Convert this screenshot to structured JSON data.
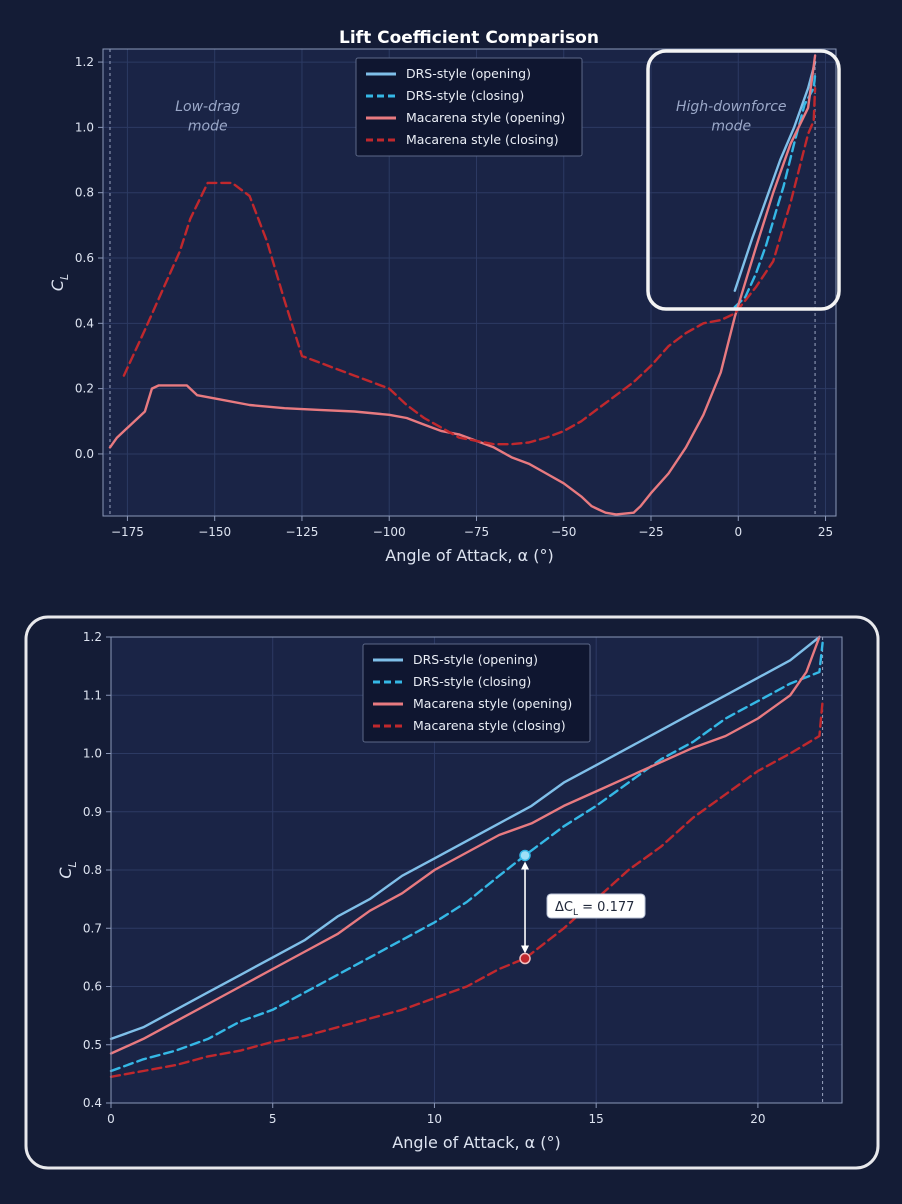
{
  "colors": {
    "background": "#141c36",
    "plot_bg": "#1a2446",
    "grid": "#2c3a63",
    "axis": "#8a97b8",
    "text": "#dde3f0",
    "drs": "#7fbfe9",
    "drs_close": "#35b8e6",
    "mac": "#e87a80",
    "mac_close": "#c0282d",
    "highlight": "#f4f4f4"
  },
  "chart_data": [
    {
      "type": "line",
      "title": "Lift Coefficient Comparison",
      "xlabel": "Angle of Attack, α (°)",
      "ylabel": "C",
      "ylabel_sub": "L",
      "xlim": [
        -182,
        28
      ],
      "ylim": [
        -0.19,
        1.24
      ],
      "x_ticks": [
        -175,
        -150,
        -125,
        -100,
        -75,
        -50,
        -25,
        0,
        25
      ],
      "x_tick_labels": [
        "−175",
        "−150",
        "−125",
        "−100",
        "−75",
        "−50",
        "−25",
        "0",
        "25"
      ],
      "y_ticks": [
        0.0,
        0.2,
        0.4,
        0.6,
        0.8,
        1.0,
        1.2
      ],
      "y_tick_labels": [
        "0.0",
        "0.2",
        "0.4",
        "0.6",
        "0.8",
        "1.0",
        "1.2"
      ],
      "vlines": [
        -180,
        22
      ],
      "grid": true,
      "legend": "upper-center",
      "annotations": [
        {
          "text": "Low-drag",
          "x": -152,
          "y": 1.05
        },
        {
          "text": "mode",
          "x": -152,
          "y": 0.99
        },
        {
          "text": "High-downforce",
          "x": -2,
          "y": 1.05
        },
        {
          "text": "mode",
          "x": -2,
          "y": 0.99
        }
      ],
      "series": [
        {
          "name": "DRS-style (opening)",
          "color_key": "drs",
          "dash": false,
          "x": [
            -1,
            4,
            8,
            12,
            16,
            20,
            22
          ],
          "y": [
            0.5,
            0.66,
            0.78,
            0.9,
            1.0,
            1.12,
            1.2
          ]
        },
        {
          "name": "DRS-style (closing)",
          "color_key": "drs_close",
          "dash": true,
          "x": [
            -1,
            2,
            5,
            8,
            11,
            13,
            16,
            19,
            21.6,
            22
          ],
          "y": [
            0.45,
            0.48,
            0.55,
            0.64,
            0.75,
            0.82,
            0.95,
            1.07,
            1.12,
            1.16
          ]
        },
        {
          "name": "Macarena style (opening)",
          "color_key": "mac",
          "dash": false,
          "x": [
            -180,
            -178,
            -176,
            -174,
            -170,
            -168,
            -166,
            -160,
            -158,
            -155,
            -150,
            -140,
            -130,
            -120,
            -110,
            -100,
            -95,
            -90,
            -85,
            -80,
            -75,
            -70,
            -65,
            -60,
            -55,
            -50,
            -45,
            -42,
            -40,
            -38,
            -35,
            -30,
            -28,
            -25,
            -20,
            -15,
            -10,
            -5,
            -1,
            5,
            10,
            15,
            20,
            22
          ],
          "y": [
            0.02,
            0.05,
            0.07,
            0.09,
            0.13,
            0.2,
            0.21,
            0.21,
            0.21,
            0.18,
            0.17,
            0.15,
            0.14,
            0.135,
            0.13,
            0.12,
            0.11,
            0.09,
            0.07,
            0.06,
            0.04,
            0.02,
            -0.01,
            -0.03,
            -0.06,
            -0.09,
            -0.13,
            -0.16,
            -0.17,
            -0.18,
            -0.185,
            -0.18,
            -0.16,
            -0.12,
            -0.06,
            0.02,
            0.12,
            0.25,
            0.42,
            0.63,
            0.8,
            0.95,
            1.06,
            1.22
          ]
        },
        {
          "name": "Macarena style (closing)",
          "color_key": "mac_close",
          "dash": true,
          "x": [
            -176,
            -170,
            -165,
            -160,
            -157,
            -152,
            -145,
            -140,
            -135,
            -130,
            -125,
            -110,
            -100,
            -95,
            -90,
            -85,
            -80,
            -75,
            -70,
            -65,
            -60,
            -55,
            -50,
            -45,
            -40,
            -35,
            -30,
            -25,
            -20,
            -15,
            -10,
            -5,
            -1,
            5,
            10,
            15,
            20,
            21.6,
            22
          ],
          "y": [
            0.24,
            0.38,
            0.5,
            0.62,
            0.72,
            0.83,
            0.83,
            0.79,
            0.65,
            0.47,
            0.3,
            0.24,
            0.2,
            0.15,
            0.11,
            0.08,
            0.05,
            0.04,
            0.03,
            0.03,
            0.035,
            0.05,
            0.07,
            0.1,
            0.14,
            0.18,
            0.22,
            0.27,
            0.33,
            0.37,
            0.4,
            0.41,
            0.43,
            0.51,
            0.59,
            0.77,
            0.98,
            1.02,
            1.12
          ]
        }
      ]
    },
    {
      "type": "line",
      "title": "",
      "xlabel": "Angle of Attack, α (°)",
      "ylabel": "C",
      "ylabel_sub": "L",
      "xlim": [
        0,
        22.6
      ],
      "ylim": [
        0.4,
        1.2
      ],
      "x_ticks": [
        0,
        5,
        10,
        15,
        20
      ],
      "x_tick_labels": [
        "0",
        "5",
        "10",
        "15",
        "20"
      ],
      "y_ticks": [
        0.4,
        0.5,
        0.6,
        0.7,
        0.8,
        0.9,
        1.0,
        1.1,
        1.2
      ],
      "y_tick_labels": [
        "0.4",
        "0.5",
        "0.6",
        "0.7",
        "0.8",
        "0.9",
        "1.0",
        "1.1",
        "1.2"
      ],
      "vlines": [
        22
      ],
      "grid": true,
      "legend": "upper-center",
      "delta_annotation": {
        "text": "ΔC",
        "sub": "L",
        "value_text": " = 0.177",
        "x": 12.8,
        "y_top": 0.825,
        "y_bottom": 0.648
      },
      "series": [
        {
          "name": "DRS-style (opening)",
          "color_key": "drs",
          "dash": false,
          "x": [
            0,
            1,
            2,
            3,
            4,
            5,
            6,
            7,
            8,
            9,
            10,
            11,
            12,
            13,
            14,
            15,
            16,
            17,
            18,
            19,
            20,
            21,
            21.9
          ],
          "y": [
            0.51,
            0.53,
            0.56,
            0.59,
            0.62,
            0.65,
            0.68,
            0.72,
            0.75,
            0.79,
            0.82,
            0.85,
            0.88,
            0.91,
            0.95,
            0.98,
            1.01,
            1.04,
            1.07,
            1.1,
            1.13,
            1.16,
            1.2
          ]
        },
        {
          "name": "DRS-style (closing)",
          "color_key": "drs_close",
          "dash": true,
          "x": [
            0,
            1,
            2,
            3,
            4,
            5,
            6,
            7,
            8,
            9,
            10,
            11,
            12,
            12.8,
            14,
            15,
            16,
            17,
            18,
            19,
            20,
            21,
            21.9,
            22
          ],
          "y": [
            0.455,
            0.475,
            0.49,
            0.51,
            0.54,
            0.56,
            0.59,
            0.62,
            0.65,
            0.68,
            0.71,
            0.745,
            0.79,
            0.825,
            0.875,
            0.91,
            0.95,
            0.99,
            1.02,
            1.06,
            1.09,
            1.12,
            1.14,
            1.19
          ]
        },
        {
          "name": "Macarena style (opening)",
          "color_key": "mac",
          "dash": false,
          "x": [
            0,
            1,
            2,
            3,
            4,
            5,
            6,
            7,
            8,
            9,
            10,
            11,
            12,
            13,
            14,
            15,
            16,
            17,
            18,
            19,
            20,
            21,
            21.5,
            21.9
          ],
          "y": [
            0.485,
            0.51,
            0.54,
            0.57,
            0.6,
            0.63,
            0.66,
            0.69,
            0.73,
            0.76,
            0.8,
            0.83,
            0.86,
            0.88,
            0.91,
            0.935,
            0.96,
            0.985,
            1.01,
            1.03,
            1.06,
            1.1,
            1.14,
            1.2
          ]
        },
        {
          "name": "Macarena style (closing)",
          "color_key": "mac_close",
          "dash": true,
          "x": [
            0,
            1,
            2,
            3,
            4,
            5,
            6,
            7,
            8,
            9,
            10,
            11,
            12,
            12.8,
            14,
            15,
            16,
            17,
            18,
            19,
            20,
            21,
            21.9,
            22
          ],
          "y": [
            0.445,
            0.455,
            0.465,
            0.48,
            0.49,
            0.505,
            0.515,
            0.53,
            0.545,
            0.56,
            0.58,
            0.6,
            0.63,
            0.648,
            0.7,
            0.75,
            0.8,
            0.84,
            0.89,
            0.93,
            0.97,
            1.0,
            1.03,
            1.09
          ]
        }
      ]
    }
  ]
}
